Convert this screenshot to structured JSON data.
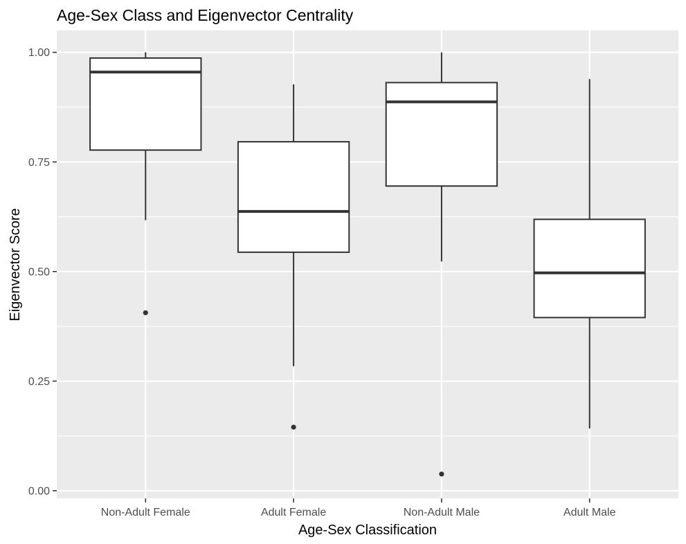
{
  "chart_data": {
    "type": "boxplot",
    "title": "Age-Sex Class and Eigenvector Centrality",
    "xlabel": "Age-Sex Classification",
    "ylabel": "Eigenvector Score",
    "ylim": [
      -0.0175,
      1.05
    ],
    "yticks": [
      0.0,
      0.25,
      0.5,
      0.75,
      1.0
    ],
    "ytick_labels": [
      "0.00",
      "0.25",
      "0.50",
      "0.75",
      "1.00"
    ],
    "categories": [
      "Non-Adult Female",
      "Adult Female",
      "Non-Adult Male",
      "Adult Male"
    ],
    "boxes": [
      {
        "category": "Non-Adult Female",
        "lower_whisker": 0.617,
        "q1": 0.777,
        "median": 0.955,
        "q3": 0.987,
        "upper_whisker": 1.0,
        "outliers": [
          0.406
        ]
      },
      {
        "category": "Adult Female",
        "lower_whisker": 0.284,
        "q1": 0.544,
        "median": 0.637,
        "q3": 0.796,
        "upper_whisker": 0.927,
        "outliers": [
          0.145
        ]
      },
      {
        "category": "Non-Adult Male",
        "lower_whisker": 0.523,
        "q1": 0.695,
        "median": 0.887,
        "q3": 0.931,
        "upper_whisker": 1.0,
        "outliers": [
          0.038
        ]
      },
      {
        "category": "Adult Male",
        "lower_whisker": 0.142,
        "q1": 0.395,
        "median": 0.497,
        "q3": 0.619,
        "upper_whisker": 0.939,
        "outliers": []
      }
    ],
    "grid": true,
    "legend": "none",
    "colors": {
      "panel": "#ebebeb",
      "grid": "#ffffff",
      "box_fill": "#ffffff",
      "box_line": "#333333",
      "point": "#333333"
    }
  }
}
